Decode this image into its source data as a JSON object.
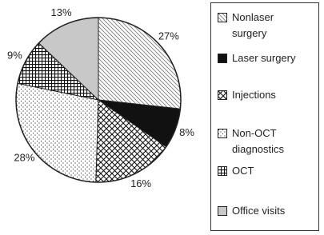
{
  "chart_data": {
    "type": "pie",
    "categories": [
      "Nonlaser surgery",
      "Laser surgery",
      "Injections",
      "Non-OCT diagnostics",
      "OCT",
      "Office visits"
    ],
    "values": [
      27,
      8,
      16,
      28,
      9,
      13
    ],
    "value_labels": [
      "27%",
      "8%",
      "16%",
      "28%",
      "9%",
      "13%"
    ],
    "colors": [
      "#ffffff",
      "#111111",
      "#ffffff",
      "#ffffff",
      "#ffffff",
      "#c8c8c8"
    ],
    "patterns": [
      "diagonal-hatch",
      "solid",
      "diamond-hatch",
      "dots",
      "grid",
      "solid"
    ]
  }
}
